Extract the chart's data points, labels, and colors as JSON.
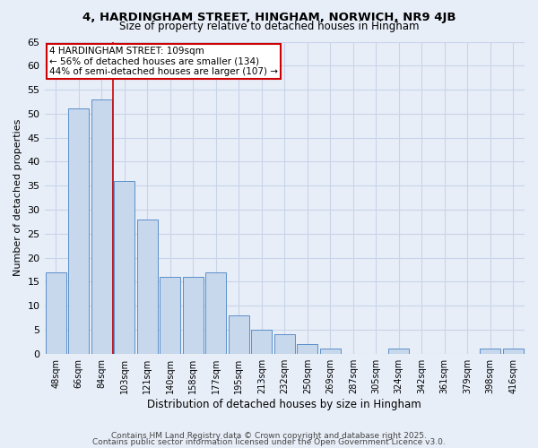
{
  "title": "4, HARDINGHAM STREET, HINGHAM, NORWICH, NR9 4JB",
  "subtitle": "Size of property relative to detached houses in Hingham",
  "xlabel": "Distribution of detached houses by size in Hingham",
  "ylabel": "Number of detached properties",
  "categories": [
    "48sqm",
    "66sqm",
    "84sqm",
    "103sqm",
    "121sqm",
    "140sqm",
    "158sqm",
    "177sqm",
    "195sqm",
    "213sqm",
    "232sqm",
    "250sqm",
    "269sqm",
    "287sqm",
    "305sqm",
    "324sqm",
    "342sqm",
    "361sqm",
    "379sqm",
    "398sqm",
    "416sqm"
  ],
  "values": [
    17,
    51,
    53,
    36,
    28,
    16,
    16,
    17,
    8,
    5,
    4,
    2,
    1,
    0,
    0,
    1,
    0,
    0,
    0,
    1,
    1
  ],
  "bar_color": "#c8d8ec",
  "bar_edge_color": "#5b8fc9",
  "vline_color": "#cc0000",
  "annotation_line1": "4 HARDINGHAM STREET: 109sqm",
  "annotation_line2": "← 56% of detached houses are smaller (134)",
  "annotation_line3": "44% of semi-detached houses are larger (107) →",
  "annotation_box_color": "#ffffff",
  "annotation_box_edge": "#cc0000",
  "ylim": [
    0,
    65
  ],
  "yticks": [
    0,
    5,
    10,
    15,
    20,
    25,
    30,
    35,
    40,
    45,
    50,
    55,
    60,
    65
  ],
  "grid_color": "#c8d4e8",
  "bg_color": "#e8eef8",
  "footer1": "Contains HM Land Registry data © Crown copyright and database right 2025.",
  "footer2": "Contains public sector information licensed under the Open Government Licence v3.0."
}
